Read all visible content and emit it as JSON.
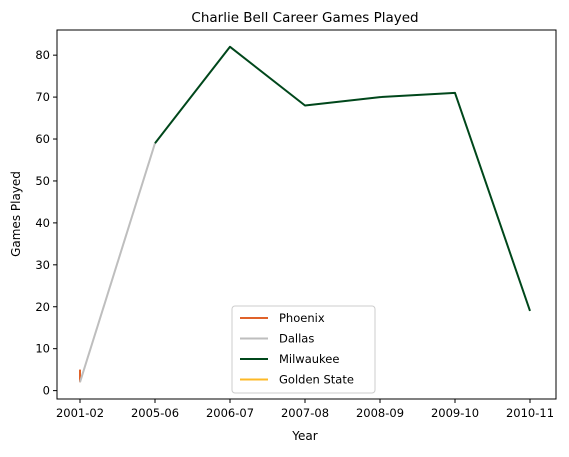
{
  "chart_data": {
    "type": "line",
    "title": "Charlie Bell  Career Games Played",
    "xlabel": "Year",
    "ylabel": "Games Played",
    "categories": [
      "2001-02",
      "2005-06",
      "2006-07",
      "2007-08",
      "2008-09",
      "2009-10",
      "2010-11"
    ],
    "ylim": [
      -2,
      86
    ],
    "yticks": [
      0,
      10,
      20,
      30,
      40,
      50,
      60,
      70,
      80
    ],
    "grid": false,
    "legend_position": "bottom-center",
    "series": [
      {
        "name": "Phoenix",
        "color": "#e0622a",
        "points": [
          {
            "x": 0,
            "y": 5
          },
          {
            "x": 0,
            "y": 2
          }
        ]
      },
      {
        "name": "Dallas",
        "color": "#bebebe",
        "points": [
          {
            "x": 0,
            "y": 2
          },
          {
            "x": 1,
            "y": 59
          }
        ]
      },
      {
        "name": "Milwaukee",
        "color": "#00471b",
        "points": [
          {
            "x": 1,
            "y": 59
          },
          {
            "x": 2,
            "y": 82
          },
          {
            "x": 3,
            "y": 68
          },
          {
            "x": 4,
            "y": 70
          },
          {
            "x": 5,
            "y": 71
          },
          {
            "x": 6,
            "y": 19
          }
        ]
      },
      {
        "name": "Golden State",
        "color": "#fdb927",
        "points": []
      }
    ]
  }
}
